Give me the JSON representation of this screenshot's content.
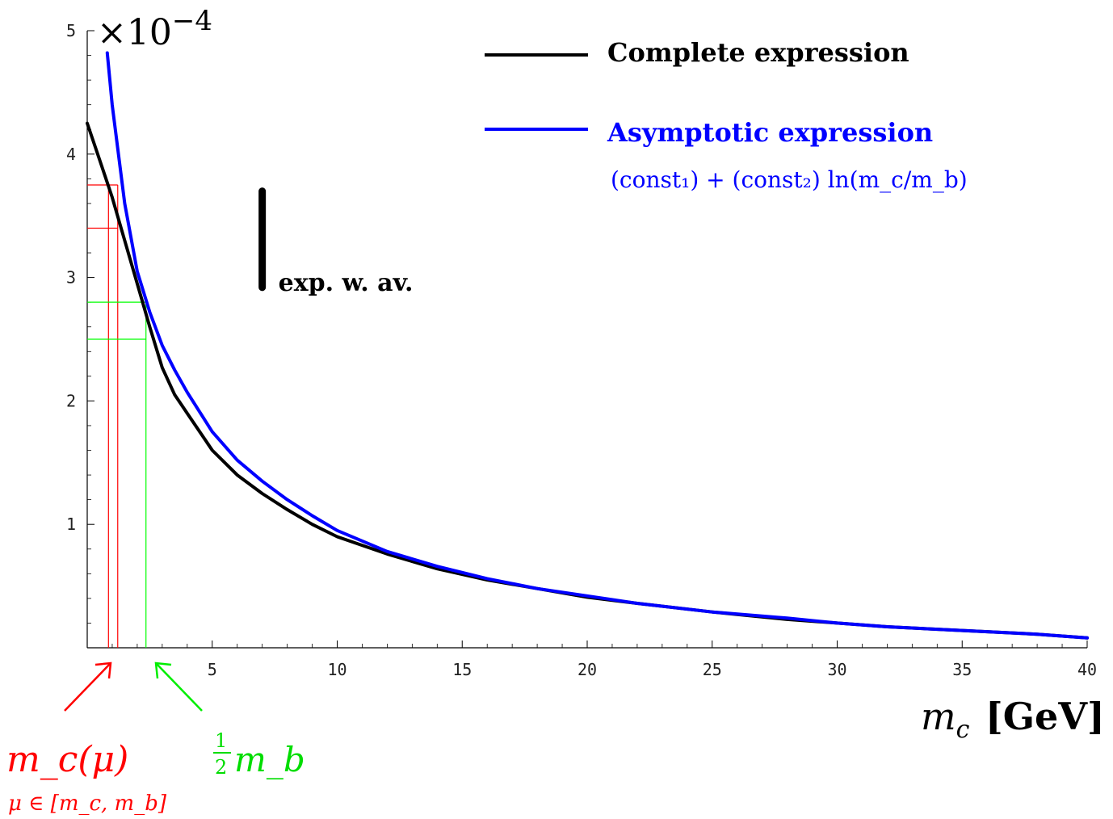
{
  "chart_data": {
    "type": "line",
    "xlabel_var": "m",
    "xlabel_sub": "c",
    "xlabel_unit": "[GeV]",
    "y_exponent_label": "×10",
    "y_exponent_power": "−4",
    "xlim": [
      0,
      40
    ],
    "ylim": [
      0,
      5
    ],
    "x_ticks": [
      5,
      10,
      15,
      20,
      25,
      30,
      35,
      40
    ],
    "y_ticks": [
      1,
      2,
      3,
      4,
      5
    ],
    "grid": false,
    "legend_position": "top-right",
    "series": [
      {
        "name": "Complete expression",
        "color": "#000000",
        "x": [
          0,
          0.5,
          1,
          1.5,
          2,
          2.5,
          3,
          3.5,
          4,
          5,
          6,
          7,
          8,
          9,
          10,
          12,
          14,
          16,
          18,
          20,
          22,
          25,
          28,
          30,
          32,
          35,
          38,
          40
        ],
        "y": [
          4.25,
          3.95,
          3.65,
          3.3,
          2.95,
          2.6,
          2.27,
          2.05,
          1.9,
          1.6,
          1.4,
          1.25,
          1.12,
          1.0,
          0.9,
          0.76,
          0.64,
          0.55,
          0.48,
          0.41,
          0.36,
          0.29,
          0.23,
          0.2,
          0.17,
          0.14,
          0.11,
          0.08
        ]
      },
      {
        "name": "Asymptotic expression",
        "color": "#0000ff",
        "x": [
          0.8,
          1,
          1.5,
          2,
          2.5,
          3,
          3.5,
          4,
          5,
          6,
          7,
          8,
          9,
          10,
          12,
          14,
          16,
          18,
          20,
          22,
          25,
          28,
          30,
          32,
          35,
          38,
          40
        ],
        "y": [
          4.82,
          4.4,
          3.6,
          3.05,
          2.72,
          2.45,
          2.25,
          2.07,
          1.75,
          1.52,
          1.35,
          1.2,
          1.07,
          0.95,
          0.78,
          0.66,
          0.56,
          0.48,
          0.42,
          0.36,
          0.29,
          0.24,
          0.2,
          0.17,
          0.14,
          0.11,
          0.08
        ]
      }
    ],
    "exp_bar": {
      "x": 7.0,
      "y_low": 2.92,
      "y_high": 3.7,
      "label": "exp.  w.  av."
    },
    "mc_mu_band": {
      "x_low": 0.85,
      "x_high": 1.22,
      "y_low": 3.4,
      "y_high": 3.75,
      "color": "#ff0000"
    },
    "half_mb_band": {
      "x": 2.35,
      "y_low": 2.5,
      "y_high": 2.8,
      "color": "#00ff00"
    },
    "legend": {
      "complete_label": "Complete expression",
      "asymptotic_label": "Asymptotic expression",
      "asymptotic_formula": "(const₁) + (const₂) ln(m_c/m_b)"
    },
    "annotations": {
      "mc_mu_label": "m_c(μ)",
      "mc_mu_sub": "μ ∈ [m_c, m_b]",
      "half_mb_num": "1",
      "half_mb_den": "2",
      "half_mb_var": "m_b"
    }
  }
}
